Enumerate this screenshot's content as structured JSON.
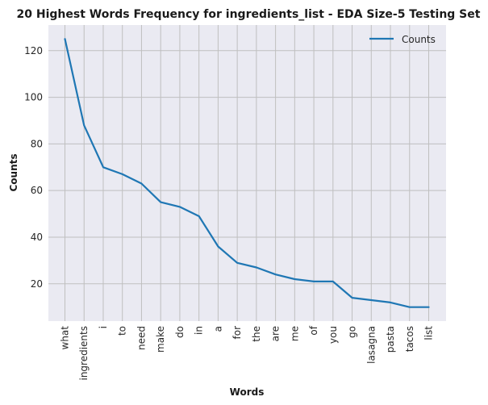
{
  "chart_data": {
    "type": "line",
    "title": "20 Highest Words Frequency for ingredients_list - EDA Size-5 Testing Set",
    "xlabel": "Words",
    "ylabel": "Counts",
    "categories": [
      "what",
      "ingredients",
      "i",
      "to",
      "need",
      "make",
      "do",
      "in",
      "a",
      "for",
      "the",
      "are",
      "me",
      "of",
      "you",
      "go",
      "lasagna",
      "pasta",
      "tacos",
      "list"
    ],
    "series": [
      {
        "name": "Counts",
        "values": [
          125,
          88,
          70,
          67,
          63,
          55,
          53,
          49,
          36,
          29,
          27,
          24,
          22,
          21,
          21,
          14,
          13,
          12,
          10,
          10
        ]
      }
    ],
    "yticks": [
      20,
      40,
      60,
      80,
      100,
      120
    ],
    "ylim": [
      4,
      131
    ],
    "grid": true,
    "legend": "top-right",
    "colors": {
      "line": "#1f77b4",
      "background": "#eaeaf2",
      "grid": "#bfbfbf"
    }
  }
}
